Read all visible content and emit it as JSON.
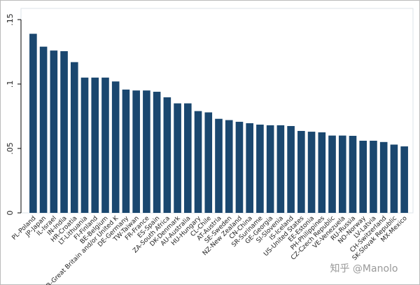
{
  "chart_data": {
    "type": "bar",
    "categories": [
      "PL-Poland",
      "JP-Japan",
      "IL-Israel",
      "IN-India",
      "HR-Croatia",
      "LT-Lithuania",
      "FI-Finland",
      "BE-Belgium",
      "GB-Great Britain and/or United K",
      "DE-Germany",
      "TW-Taiwan",
      "FR-France",
      "ES-Spain",
      "ZA-South Africa",
      "DK-Denmark",
      "AU-Australia",
      "HU-Hungary",
      "CL-Chile",
      "AT-Austria",
      "SE-Sweden",
      "NZ-New Zealand",
      "CN-China",
      "SR-Suriname",
      "GE-Georgia",
      "SI-Slovenia",
      "IS-Iceland",
      "US-United States",
      "EE-Estonia",
      "PH-Philippines",
      "CZ-Czech Republic",
      "VE-Venezuela",
      "RU-Russia",
      "NO-Norway",
      "LV-Latvia",
      "CH-Switzerland",
      "SK-Slovak Republic",
      "MX-Mexico"
    ],
    "values": [
      0.139,
      0.129,
      0.126,
      0.1255,
      0.117,
      0.105,
      0.105,
      0.105,
      0.102,
      0.0957,
      0.095,
      0.095,
      0.094,
      0.0897,
      0.085,
      0.085,
      0.079,
      0.078,
      0.073,
      0.072,
      0.0707,
      0.0696,
      0.0685,
      0.068,
      0.068,
      0.0674,
      0.0636,
      0.063,
      0.0625,
      0.06,
      0.06,
      0.0598,
      0.056,
      0.056,
      0.055,
      0.053,
      0.0516
    ],
    "color": "#1a476f",
    "ylim": [
      0,
      0.15
    ],
    "yticks": [
      0,
      {
        "value": 0.05,
        "label": ".05"
      },
      {
        "value": 0.1,
        "label": ".1"
      },
      {
        "value": 0.15,
        "label": ".15"
      }
    ],
    "watermark": "知乎 @Manolo"
  }
}
